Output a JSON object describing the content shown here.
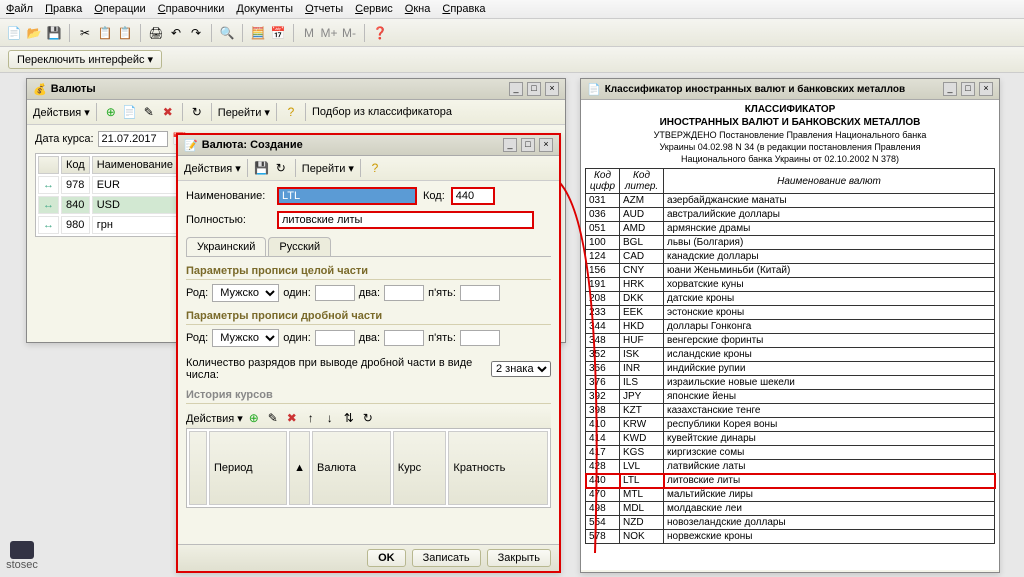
{
  "menu": [
    "Файл",
    "Правка",
    "Операции",
    "Справочники",
    "Документы",
    "Отчеты",
    "Сервис",
    "Окна",
    "Справка"
  ],
  "switch_btn": "Переключить интерфейс ▾",
  "win_curr": {
    "title": "Валюты",
    "toolbar_actions": "Действия ▾",
    "toolbar_goto": "Перейти ▾",
    "toolbar_pick": "Подбор из классификатора",
    "date_label": "Дата курса:",
    "date_value": "21.07.2017",
    "col_code": "Код",
    "col_name": "Наименование",
    "rows": [
      {
        "code": "978",
        "name": "EUR"
      },
      {
        "code": "840",
        "name": "USD",
        "sel": true
      },
      {
        "code": "980",
        "name": "грн"
      }
    ]
  },
  "win_create": {
    "title": "Валюта: Создание",
    "toolbar_actions": "Действия ▾",
    "toolbar_goto": "Перейти ▾",
    "name_label": "Наименование:",
    "name_value": "LTL",
    "code_label": "Код:",
    "code_value": "440",
    "full_label": "Полностью:",
    "full_value": "литовские литы",
    "tab_ukr": "Украинский",
    "tab_rus": "Русский",
    "section_int": "Параметры прописи целой части",
    "section_dec": "Параметры прописи дробной части",
    "gender_label": "Род:",
    "gender_value": "Мужско",
    "one_label": "один:",
    "two_label": "два:",
    "five_label": "п'ять:",
    "digits_label": "Количество разрядов при выводе дробной части в виде числа:",
    "digits_value": "2 знака",
    "history_label": "История курсов",
    "hist_actions": "Действия ▾",
    "hist_col_period": "Период",
    "hist_col_curr": "Валюта",
    "hist_col_rate": "Курс",
    "hist_col_mult": "Кратность",
    "btn_ok": "OK",
    "btn_save": "Записать",
    "btn_close": "Закрыть"
  },
  "win_cls": {
    "title": "Классификатор иностранных валют и банковских металлов",
    "h1": "КЛАССИФИКАТОР",
    "h2": "ИНОСТРАННЫХ ВАЛЮТ И БАНКОВСКИХ МЕТАЛЛОВ",
    "h3": "УТВЕРЖДЕНО Постановление Правления Национального банка",
    "h4": "Украины 04.02.98 N 34 (в редакции постановления Правления",
    "h5": "Национального банка Украины от 02.10.2002 N 378)",
    "col_num": "Код цифр",
    "col_let": "Код литер.",
    "col_name": "Наименование валют",
    "rows": [
      {
        "c": "031",
        "l": "AZM",
        "n": "азербайджанские манаты"
      },
      {
        "c": "036",
        "l": "AUD",
        "n": "австралийские доллары"
      },
      {
        "c": "051",
        "l": "AMD",
        "n": "армянские драмы"
      },
      {
        "c": "100",
        "l": "BGL",
        "n": "львы (Болгария)"
      },
      {
        "c": "124",
        "l": "CAD",
        "n": "канадские доллары"
      },
      {
        "c": "156",
        "l": "CNY",
        "n": "юани Женьминьби (Китай)"
      },
      {
        "c": "191",
        "l": "HRK",
        "n": "хорватские куны"
      },
      {
        "c": "208",
        "l": "DKK",
        "n": "датские кроны"
      },
      {
        "c": "233",
        "l": "EEK",
        "n": "эстонские кроны"
      },
      {
        "c": "344",
        "l": "HKD",
        "n": "доллары Гонконга"
      },
      {
        "c": "348",
        "l": "HUF",
        "n": "венгерские форинты"
      },
      {
        "c": "352",
        "l": "ISK",
        "n": "исландские кроны"
      },
      {
        "c": "356",
        "l": "INR",
        "n": "индийские рупии"
      },
      {
        "c": "376",
        "l": "ILS",
        "n": "израильские новые шекели"
      },
      {
        "c": "392",
        "l": "JPY",
        "n": "японские йены"
      },
      {
        "c": "398",
        "l": "KZT",
        "n": "казахстанские тенге"
      },
      {
        "c": "410",
        "l": "KRW",
        "n": "республики Корея воны"
      },
      {
        "c": "414",
        "l": "KWD",
        "n": "кувейтские динары"
      },
      {
        "c": "417",
        "l": "KGS",
        "n": "киргизские сомы"
      },
      {
        "c": "428",
        "l": "LVL",
        "n": "латвийские латы"
      },
      {
        "c": "440",
        "l": "LTL",
        "n": "литовские литы",
        "hl": true
      },
      {
        "c": "470",
        "l": "MTL",
        "n": "мальтийские лиры"
      },
      {
        "c": "498",
        "l": "MDL",
        "n": "молдавские леи"
      },
      {
        "c": "554",
        "l": "NZD",
        "n": "новозеландские доллары"
      },
      {
        "c": "578",
        "l": "NOK",
        "n": "норвежские кроны"
      }
    ]
  },
  "stosec": "stosec"
}
